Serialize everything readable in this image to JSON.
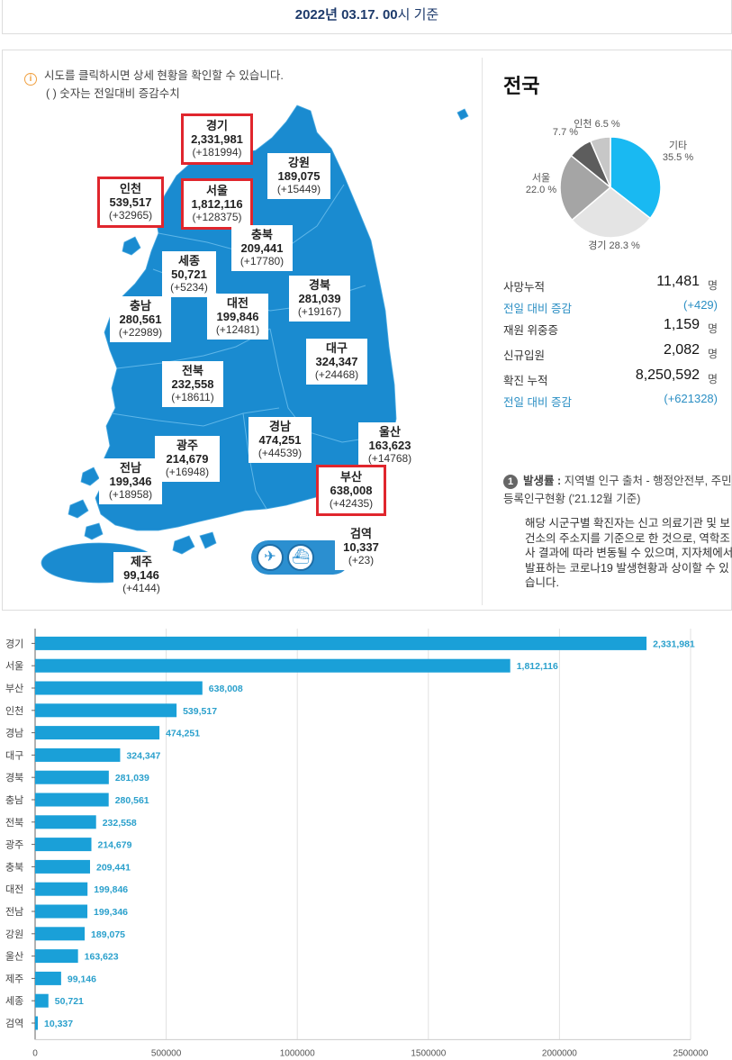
{
  "header": {
    "date": "2022년 03.17. 00",
    "suffix": "시 기준"
  },
  "notice": {
    "icon": "info-icon",
    "line1": "시도를 클릭하시면 상세 현황을 확인할 수 있습니다.",
    "line2": "( ) 숫자는 전일대비 증감수치"
  },
  "regions": {
    "gyeonggi": {
      "name": "경기",
      "count": "2,331,981",
      "inc": "(+181994)"
    },
    "gangwon": {
      "name": "강원",
      "count": "189,075",
      "inc": "(+15449)"
    },
    "incheon": {
      "name": "인천",
      "count": "539,517",
      "inc": "(+32965)"
    },
    "seoul": {
      "name": "서울",
      "count": "1,812,116",
      "inc": "(+128375)"
    },
    "chungbuk": {
      "name": "충북",
      "count": "209,441",
      "inc": "(+17780)"
    },
    "sejong": {
      "name": "세종",
      "count": "50,721",
      "inc": "(+5234)"
    },
    "gyeongbuk": {
      "name": "경북",
      "count": "281,039",
      "inc": "(+19167)"
    },
    "chungnam": {
      "name": "충남",
      "count": "280,561",
      "inc": "(+22989)"
    },
    "daejeon": {
      "name": "대전",
      "count": "199,846",
      "inc": "(+12481)"
    },
    "daegu": {
      "name": "대구",
      "count": "324,347",
      "inc": "(+24468)"
    },
    "jeonbuk": {
      "name": "전북",
      "count": "232,558",
      "inc": "(+18611)"
    },
    "gyeongnam": {
      "name": "경남",
      "count": "474,251",
      "inc": "(+44539)"
    },
    "ulsan": {
      "name": "울산",
      "count": "163,623",
      "inc": "(+14768)"
    },
    "gwangju": {
      "name": "광주",
      "count": "214,679",
      "inc": "(+16948)"
    },
    "jeonnam": {
      "name": "전남",
      "count": "199,346",
      "inc": "(+18958)"
    },
    "busan": {
      "name": "부산",
      "count": "638,008",
      "inc": "(+42435)"
    },
    "quarantine": {
      "name": "검역",
      "count": "10,337",
      "inc": "(+23)"
    },
    "jeju": {
      "name": "제주",
      "count": "99,146",
      "inc": "(+4144)"
    }
  },
  "transport_icons": [
    "airplane-icon",
    "ship-icon"
  ],
  "colors": {
    "map": "#1a8bd0",
    "highlight": "#e0262d",
    "bar": "#1aa0d8",
    "value": "#2aa0cc"
  },
  "summary": {
    "title": "전국",
    "pie": [
      {
        "label": "기타",
        "value": 35.5,
        "pct": "35.5 %",
        "color": "#19b9f2"
      },
      {
        "label": "경기",
        "value": 28.3,
        "pct": "28.3 %",
        "color": "#e4e4e4"
      },
      {
        "label": "서울",
        "value": 22.0,
        "pct": "22.0 %",
        "color": "#a5a5a5"
      },
      {
        "label": "",
        "value": 7.7,
        "pct": "7.7 %",
        "color": "#5d5d5d"
      },
      {
        "label": "인천",
        "value": 6.5,
        "pct": "6.5 %",
        "color": "#c7c7c7"
      }
    ],
    "stats": [
      {
        "key": "사망누적",
        "value": "11,481",
        "unit": "명"
      },
      {
        "key": "전일 대비 증감",
        "value": "(+429)",
        "unit": ""
      },
      {
        "key": "재원 위중증",
        "value": "1,159",
        "unit": "명"
      },
      {
        "key": "신규입원",
        "value": "2,082",
        "unit": "명"
      },
      {
        "key": "확진 누적",
        "value": "8,250,592",
        "unit": "명"
      },
      {
        "key": "전일 대비 증감",
        "value": "(+621328)",
        "unit": ""
      }
    ],
    "footnote_num": "1",
    "footnote_title": "발생률 :",
    "footnote_text": " 지역별 인구 출처 - 행정안전부, 주민등록인구현황 ('21.12월 기준)",
    "footnote_body": "해당 시군구별 확진자는 신고 의료기관 및 보건소의 주소지를 기준으로 한 것으로, 역학조사 결과에 따라 변동될 수 있으며, 지자체에서 발표하는 코로나19 발생현황과 상이할 수 있습니다."
  },
  "chart_data": [
    {
      "type": "pie",
      "title": "",
      "categories": [
        "기타",
        "경기",
        "서울",
        "",
        "인천"
      ],
      "values": [
        35.5,
        28.3,
        22.0,
        7.7,
        6.5
      ]
    },
    {
      "type": "bar",
      "orientation": "horizontal",
      "title": "",
      "xlabel": "",
      "ylabel": "",
      "categories": [
        "경기",
        "서울",
        "부산",
        "인천",
        "경남",
        "대구",
        "경북",
        "충남",
        "전북",
        "광주",
        "충북",
        "대전",
        "전남",
        "강원",
        "울산",
        "제주",
        "세종",
        "검역"
      ],
      "values": [
        2331981,
        1812116,
        638008,
        539517,
        474251,
        324347,
        281039,
        280561,
        232558,
        214679,
        209441,
        199846,
        199346,
        189075,
        163623,
        99146,
        50721,
        10337
      ],
      "value_labels": [
        "2,331,981",
        "1,812,116",
        "638,008",
        "539,517",
        "474,251",
        "324,347",
        "281,039",
        "280,561",
        "232,558",
        "214,679",
        "209,441",
        "199,846",
        "199,346",
        "189,075",
        "163,623",
        "99,146",
        "50,721",
        "10,337"
      ],
      "xlim": [
        0,
        2500000
      ],
      "xticks": [
        "0",
        "500000",
        "1000000",
        "1500000",
        "2000000",
        "2500000"
      ],
      "grid": true
    }
  ]
}
